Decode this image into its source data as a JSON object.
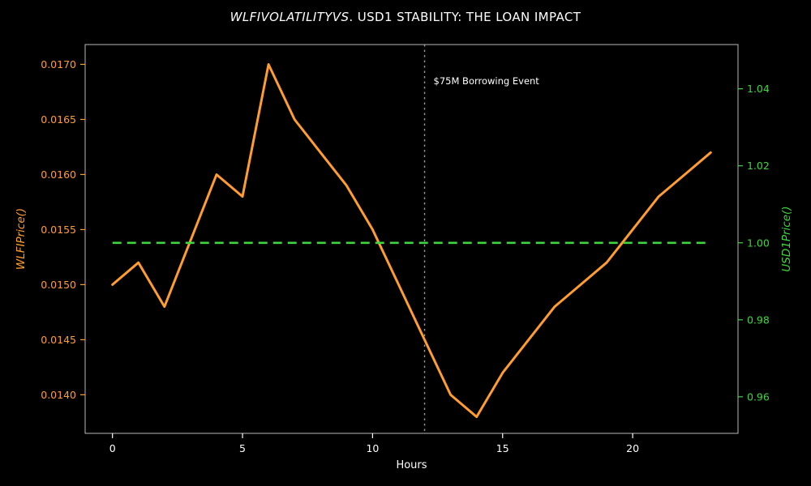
{
  "title": {
    "italic_part": "WLFIVOLATILITYVS",
    "regular_part": ". USD1 STABILITY: THE LOAN IMPACT"
  },
  "colors": {
    "background": "#000000",
    "text": "#ffffff",
    "left_axis": "#ff9d2f",
    "right_axis": "#3ed63e",
    "frame": "#d9d9d9",
    "event_line": "#9a9a9a"
  },
  "chart_data": {
    "type": "line",
    "title": "WLFIVOLATILITYVS. USD1 STABILITY: THE LOAN IMPACT",
    "xlabel": "Hours",
    "ylabel_left": "WLFIPrice()",
    "ylabel_right": "USD1Price()",
    "grid": false,
    "legend": null,
    "x": [
      0,
      1,
      2,
      3,
      4,
      5,
      6,
      7,
      8,
      9,
      10,
      11,
      12,
      13,
      14,
      15,
      16,
      17,
      18,
      19,
      20,
      21,
      22,
      23
    ],
    "series": [
      {
        "name": "WLFI Price",
        "axis": "left",
        "color": "#ff9d2f",
        "style": "solid",
        "width": 3,
        "values": [
          0.015,
          0.0152,
          0.0148,
          0.0154,
          0.016,
          0.0158,
          0.017,
          0.0165,
          0.0162,
          0.0159,
          0.0155,
          0.015,
          0.0145,
          0.014,
          0.0138,
          0.0142,
          0.0145,
          0.0148,
          0.015,
          0.0152,
          0.0155,
          0.0158,
          0.016,
          0.0162
        ]
      },
      {
        "name": "USD1 Price",
        "axis": "right",
        "color": "#3ed63e",
        "style": "dashed",
        "width": 2.6,
        "values": [
          1.0,
          1.0,
          1.0,
          1.0,
          1.0,
          1.0,
          1.0,
          1.0,
          1.0,
          1.0,
          1.0,
          1.0,
          1.0,
          1.0,
          1.0,
          1.0,
          1.0,
          1.0,
          1.0,
          1.0,
          1.0,
          1.0,
          1.0,
          1.0
        ]
      }
    ],
    "annotation": {
      "text": "$75M Borrowing Event",
      "x": 12,
      "text_y": 104,
      "color": "#ffffff",
      "line_color": "#9a9a9a"
    },
    "x_ticks": [
      "0",
      "5",
      "10",
      "15",
      "20"
    ],
    "y_left_ticks": [
      "0.0140",
      "0.0145",
      "0.0150",
      "0.0155",
      "0.0160",
      "0.0165",
      "0.0170"
    ],
    "y_right_ticks": [
      "0.96",
      "0.98",
      "1.00",
      "1.02",
      "1.04"
    ],
    "xlim": [
      -1.05,
      24.05
    ],
    "ylim_left": [
      0.01365,
      0.01718
    ],
    "ylim_right": [
      0.9505,
      1.0515
    ]
  }
}
